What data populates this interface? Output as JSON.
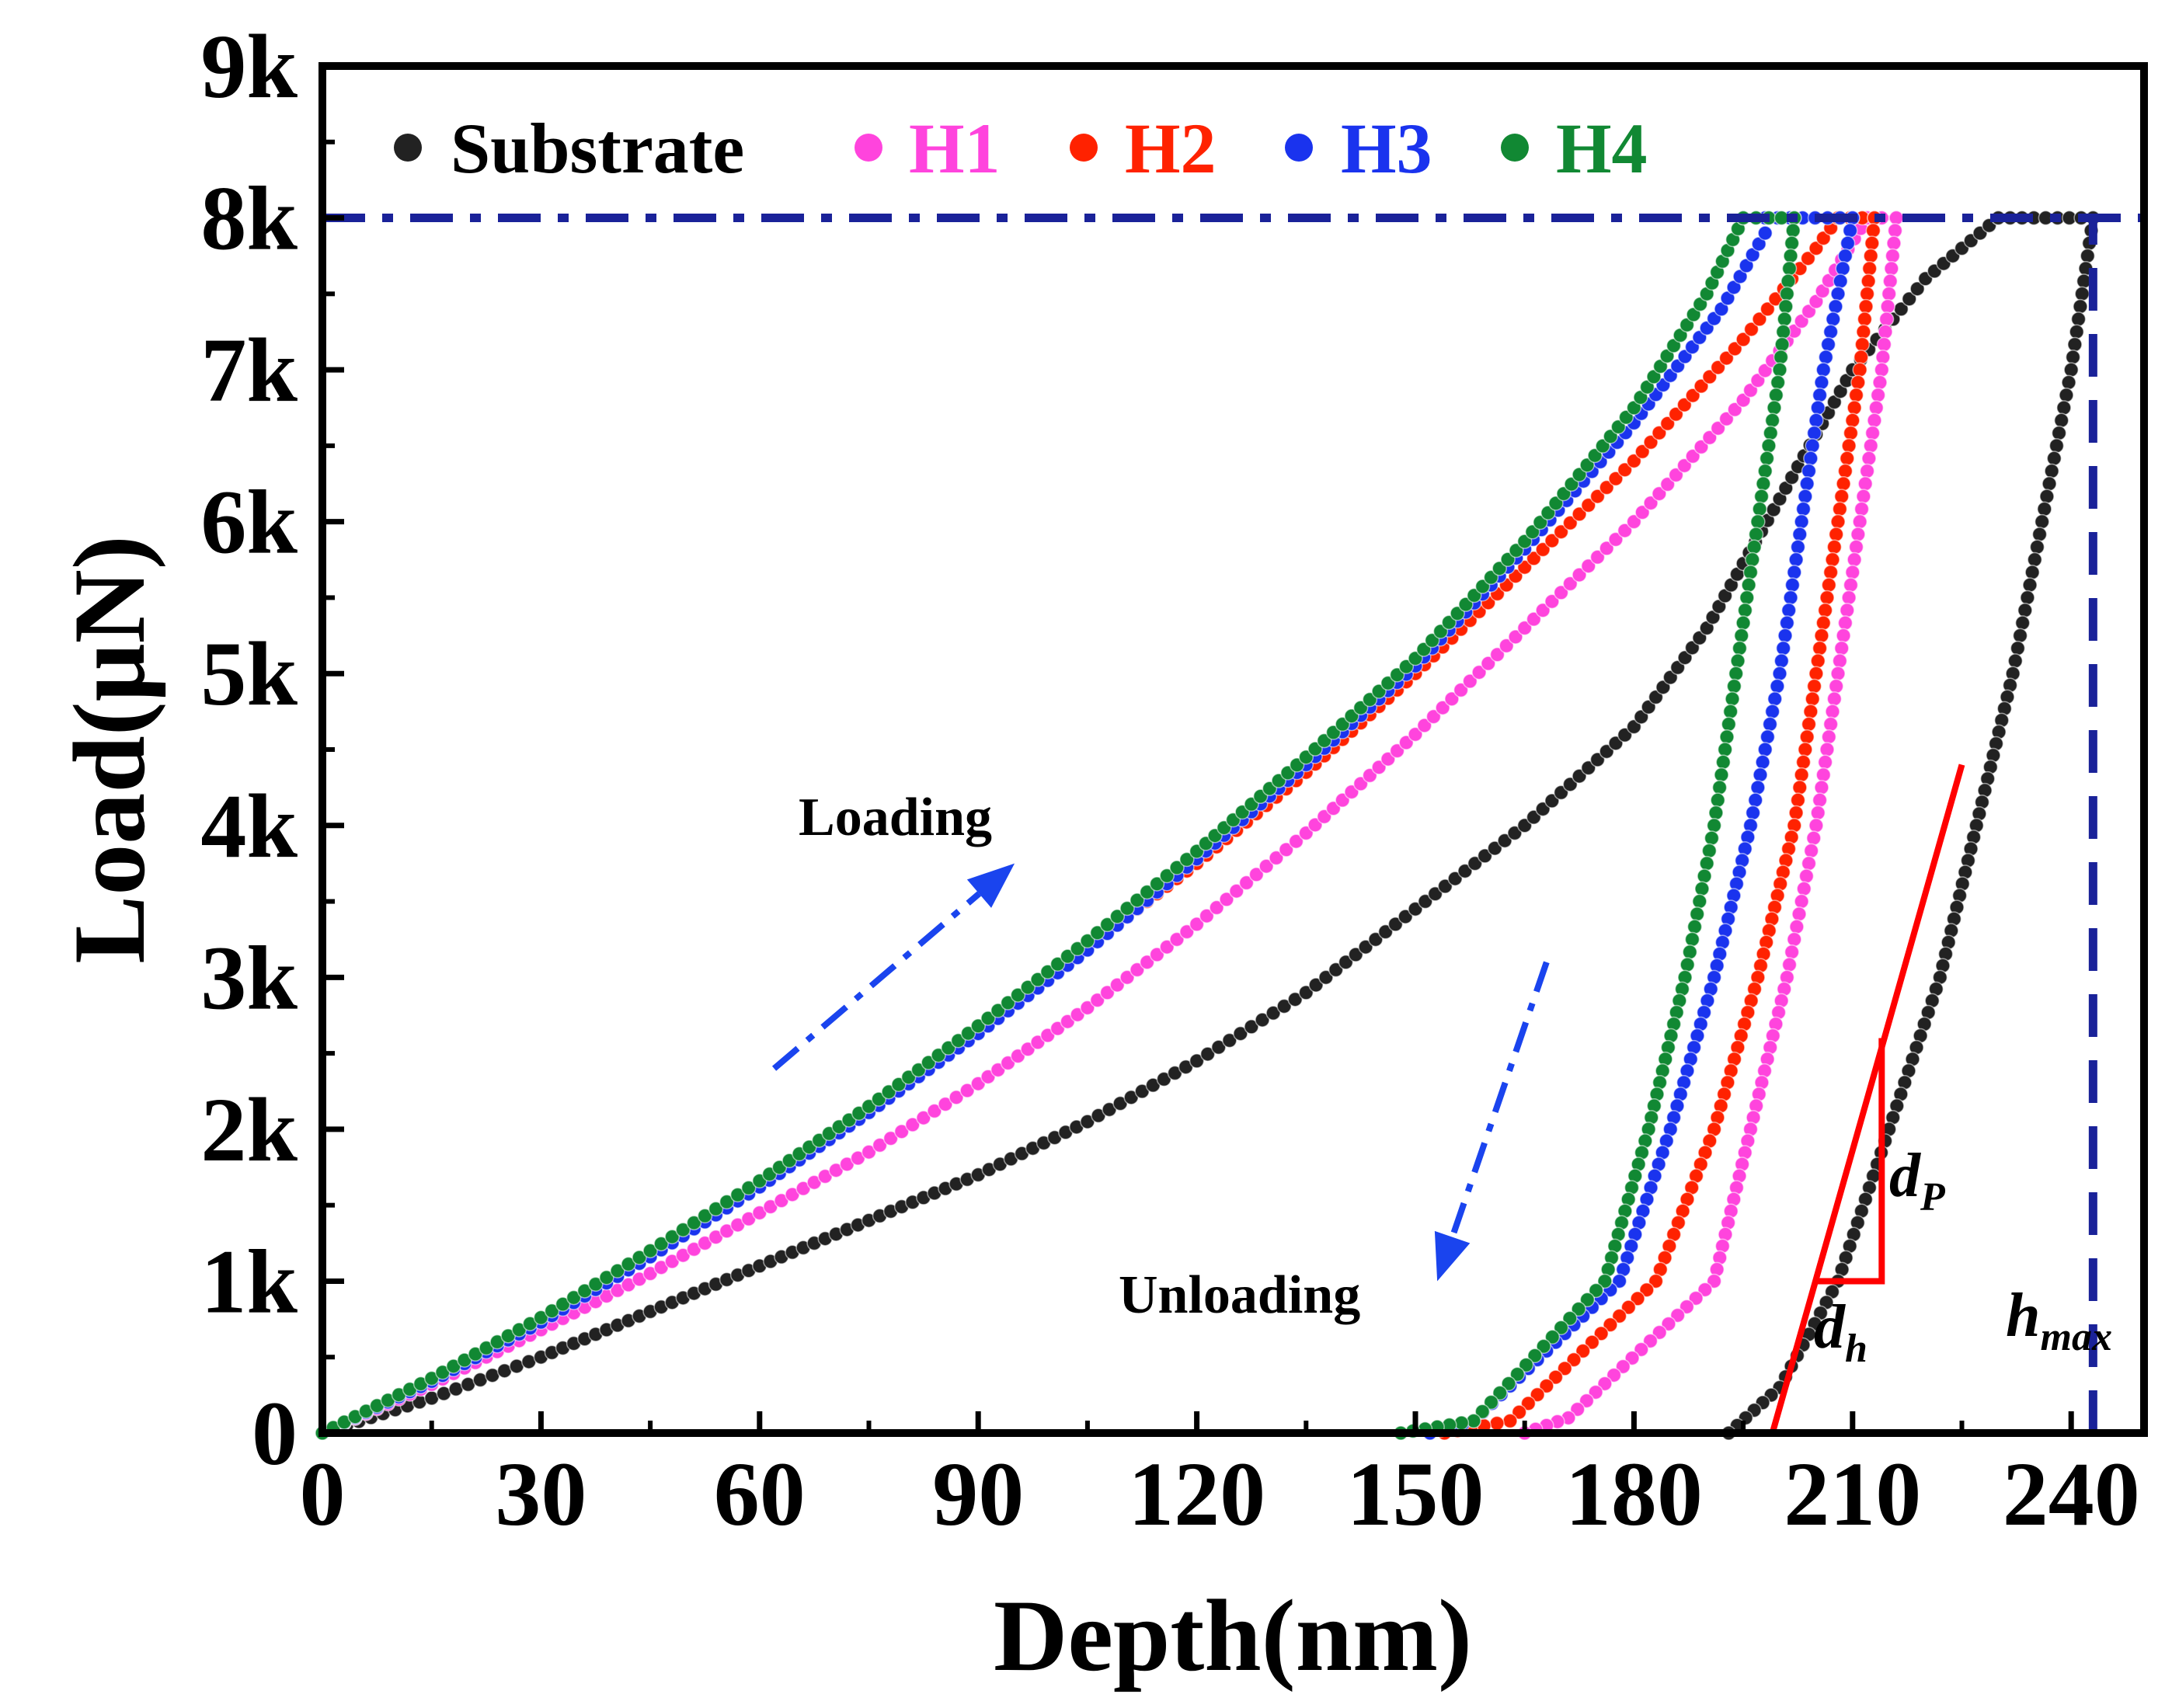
{
  "chart_data": {
    "type": "line",
    "title": "",
    "xlabel": "Depth(nm)",
    "ylabel": "Load(μN)",
    "xlim": [
      0,
      250
    ],
    "ylim": [
      0,
      9000
    ],
    "x_ticks": [
      0,
      30,
      60,
      90,
      120,
      150,
      180,
      210,
      240
    ],
    "x_tick_labels": [
      "0",
      "30",
      "60",
      "90",
      "120",
      "150",
      "180",
      "210",
      "240"
    ],
    "y_ticks": [
      0,
      1000,
      2000,
      3000,
      4000,
      5000,
      6000,
      7000,
      8000,
      9000
    ],
    "y_tick_labels": [
      "0",
      "1k",
      "2k",
      "3k",
      "4k",
      "5k",
      "6k",
      "7k",
      "8k",
      "9k"
    ],
    "legend_position": "top-left",
    "series": [
      {
        "name": "Substrate",
        "color": "#222222",
        "loading": [
          [
            0,
            0
          ],
          [
            15,
            230
          ],
          [
            30,
            500
          ],
          [
            45,
            800
          ],
          [
            60,
            1100
          ],
          [
            75,
            1400
          ],
          [
            90,
            1700
          ],
          [
            105,
            2050
          ],
          [
            120,
            2450
          ],
          [
            135,
            2900
          ],
          [
            150,
            3450
          ],
          [
            165,
            4000
          ],
          [
            180,
            4650
          ],
          [
            190,
            5300
          ],
          [
            200,
            6150
          ],
          [
            210,
            7000
          ],
          [
            220,
            7600
          ],
          [
            230,
            8000
          ]
        ],
        "hold": [
          [
            230,
            8000
          ],
          [
            243,
            8000
          ]
        ],
        "unloading": [
          [
            243,
            8000
          ],
          [
            240,
            7000
          ],
          [
            236,
            6000
          ],
          [
            232,
            5000
          ],
          [
            227,
            4000
          ],
          [
            222,
            3000
          ],
          [
            215,
            2000
          ],
          [
            208,
            1000
          ],
          [
            200,
            300
          ],
          [
            193,
            0
          ]
        ]
      },
      {
        "name": "H1",
        "color": "#ff44dd",
        "loading": [
          [
            0,
            0
          ],
          [
            15,
            320
          ],
          [
            30,
            680
          ],
          [
            45,
            1050
          ],
          [
            60,
            1450
          ],
          [
            75,
            1850
          ],
          [
            90,
            2300
          ],
          [
            105,
            2800
          ],
          [
            120,
            3350
          ],
          [
            135,
            3950
          ],
          [
            150,
            4600
          ],
          [
            165,
            5300
          ],
          [
            180,
            6000
          ],
          [
            195,
            6800
          ],
          [
            205,
            7450
          ],
          [
            212,
            8000
          ]
        ],
        "hold": [
          [
            212,
            8000
          ],
          [
            216,
            8000
          ]
        ],
        "unloading": [
          [
            216,
            8000
          ],
          [
            214,
            7000
          ],
          [
            211,
            6000
          ],
          [
            208,
            5000
          ],
          [
            205,
            4000
          ],
          [
            201,
            3000
          ],
          [
            196,
            2000
          ],
          [
            191,
            1000
          ],
          [
            171,
            100
          ],
          [
            165,
            0
          ]
        ]
      },
      {
        "name": "H2",
        "color": "#ff2200",
        "loading": [
          [
            0,
            0
          ],
          [
            15,
            350
          ],
          [
            30,
            750
          ],
          [
            45,
            1200
          ],
          [
            60,
            1650
          ],
          [
            75,
            2150
          ],
          [
            90,
            2650
          ],
          [
            105,
            3200
          ],
          [
            120,
            3750
          ],
          [
            135,
            4350
          ],
          [
            150,
            5000
          ],
          [
            165,
            5700
          ],
          [
            180,
            6400
          ],
          [
            195,
            7200
          ],
          [
            205,
            7800
          ],
          [
            208,
            8000
          ]
        ],
        "hold": [
          [
            208,
            8000
          ],
          [
            213,
            8000
          ]
        ],
        "unloading": [
          [
            213,
            8000
          ],
          [
            211,
            7000
          ],
          [
            208,
            6000
          ],
          [
            205,
            5000
          ],
          [
            202,
            4000
          ],
          [
            197,
            3000
          ],
          [
            191,
            2000
          ],
          [
            183,
            1000
          ],
          [
            163,
            80
          ],
          [
            154,
            0
          ]
        ]
      },
      {
        "name": "H3",
        "color": "#1a33ee",
        "loading": [
          [
            0,
            0
          ],
          [
            15,
            340
          ],
          [
            30,
            730
          ],
          [
            45,
            1160
          ],
          [
            60,
            1620
          ],
          [
            75,
            2110
          ],
          [
            90,
            2630
          ],
          [
            105,
            3180
          ],
          [
            120,
            3780
          ],
          [
            135,
            4400
          ],
          [
            150,
            5050
          ],
          [
            165,
            5820
          ],
          [
            180,
            6650
          ],
          [
            192,
            7400
          ],
          [
            198,
            7900
          ]
        ],
        "hold": [
          [
            198,
            8000
          ],
          [
            210,
            8000
          ]
        ],
        "unloading": [
          [
            210,
            8000
          ],
          [
            206,
            7000
          ],
          [
            203,
            6000
          ],
          [
            200,
            5000
          ],
          [
            196,
            4000
          ],
          [
            191,
            3000
          ],
          [
            185,
            2000
          ],
          [
            178,
            1000
          ],
          [
            158,
            80
          ],
          [
            152,
            0
          ]
        ]
      },
      {
        "name": "H4",
        "color": "#118833",
        "loading": [
          [
            0,
            0
          ],
          [
            15,
            360
          ],
          [
            30,
            760
          ],
          [
            45,
            1200
          ],
          [
            60,
            1660
          ],
          [
            75,
            2150
          ],
          [
            90,
            2680
          ],
          [
            105,
            3240
          ],
          [
            120,
            3830
          ],
          [
            135,
            4450
          ],
          [
            150,
            5100
          ],
          [
            165,
            5870
          ],
          [
            180,
            6750
          ],
          [
            190,
            7500
          ],
          [
            195,
            8000
          ]
        ],
        "hold": [
          [
            195,
            8000
          ],
          [
            202,
            8000
          ]
        ],
        "unloading": [
          [
            202,
            8000
          ],
          [
            200,
            7000
          ],
          [
            197,
            6000
          ],
          [
            194,
            5000
          ],
          [
            191,
            4000
          ],
          [
            187,
            3000
          ],
          [
            182,
            2000
          ],
          [
            176,
            1000
          ],
          [
            158,
            80
          ],
          [
            148,
            0
          ]
        ]
      }
    ],
    "reference_lines": [
      {
        "name": "max-load-line",
        "axis": "y",
        "value": 8000,
        "style": "dash-dot",
        "color": "#1a2299"
      },
      {
        "name": "hmax-line",
        "axis": "x",
        "value": 243,
        "style": "dashed",
        "color": "#1a2299"
      }
    ],
    "tangent_line": {
      "color": "#ff0000",
      "from": [
        199,
        0
      ],
      "to": [
        225,
        4400
      ]
    },
    "slope_triangle": {
      "x1": 205,
      "x2": 214,
      "y1": 1000,
      "y2": 2600
    },
    "annotations": {
      "loading": "Loading",
      "unloading": "Unloading",
      "dp": "d",
      "dp_sub": "P",
      "dh": "d",
      "dh_sub": "h",
      "hmax": "h",
      "hmax_sub": "max"
    },
    "arrows": [
      {
        "name": "loading-arrow",
        "from": [
          62,
          2400
        ],
        "to": [
          95,
          3750
        ]
      },
      {
        "name": "unloading-arrow",
        "from": [
          168,
          3100
        ],
        "to": [
          153,
          1000
        ]
      }
    ]
  }
}
